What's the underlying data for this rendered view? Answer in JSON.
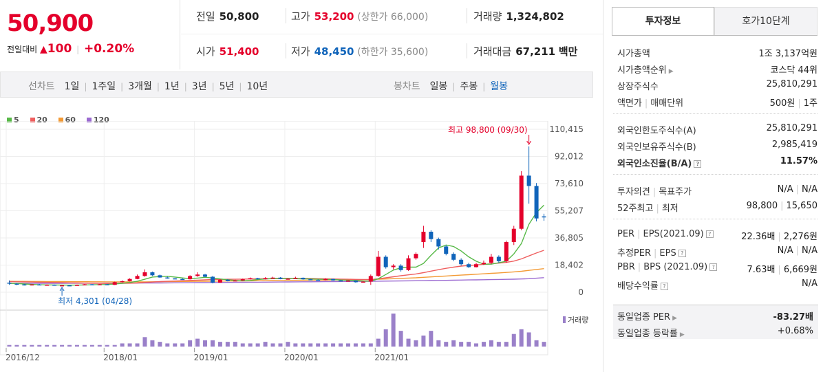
{
  "summary": {
    "price": "50,900",
    "change_label": "전일대비",
    "change_arrow": "▲",
    "change_value": "100",
    "change_pct": "+0.20%"
  },
  "quotes": {
    "prev_label": "전일",
    "prev_value": "50,800",
    "high_label": "고가",
    "high_value": "53,200",
    "high_sub": "(상한가 66,000)",
    "volume_label": "거래량",
    "volume_value": "1,324,802",
    "open_label": "시가",
    "open_value": "51,400",
    "low_label": "저가",
    "low_value": "48,450",
    "low_sub": "(하한가 35,600)",
    "amount_label": "거래대금",
    "amount_value": "67,211",
    "amount_unit": "백만"
  },
  "toolbar": {
    "line_label": "선차트",
    "ranges": [
      "1일",
      "1주일",
      "3개월",
      "1년",
      "3년",
      "5년",
      "10년"
    ],
    "candle_label": "봉차트",
    "candle_ranges": [
      "일봉",
      "주봉",
      "월봉"
    ],
    "selected_candle": "월봉"
  },
  "colors": {
    "up": "#e4002b",
    "down": "#1064ba",
    "ma5": "#57b947",
    "ma20": "#ef5f5f",
    "ma60": "#f39a34",
    "ma120": "#9b6ad1",
    "volume": "#9a80c9"
  },
  "chart_data": {
    "type": "candlestick",
    "period": "monthly",
    "legend": [
      "5",
      "20",
      "60",
      "120"
    ],
    "ylim": [
      0,
      110415
    ],
    "y_ticks": [
      "110,415",
      "92,012",
      "73,610",
      "55,207",
      "36,805",
      "18,402",
      "0"
    ],
    "x_ticks": [
      "2016/12",
      "2018/01",
      "2019/01",
      "2020/01",
      "2021/01"
    ],
    "max_annotation": "최고 98,800 (09/30)",
    "min_annotation": "최저 4,301 (04/28)",
    "volume_label": "거래량",
    "candles": [
      {
        "o": 6500,
        "c": 5800
      },
      {
        "o": 5800,
        "c": 5200
      },
      {
        "o": 5300,
        "c": 4800
      },
      {
        "o": 4800,
        "c": 5300
      },
      {
        "o": 5300,
        "c": 4900
      },
      {
        "o": 4900,
        "c": 5100
      },
      {
        "o": 5100,
        "c": 4600
      },
      {
        "o": 4600,
        "c": 4700
      },
      {
        "o": 4700,
        "c": 4500
      },
      {
        "o": 4500,
        "c": 5000
      },
      {
        "o": 5000,
        "c": 5400
      },
      {
        "o": 5400,
        "c": 5200
      },
      {
        "o": 5200,
        "c": 5400
      },
      {
        "o": 5400,
        "c": 5000
      },
      {
        "o": 5000,
        "c": 6800
      },
      {
        "o": 6800,
        "c": 7500
      },
      {
        "o": 7500,
        "c": 9000
      },
      {
        "o": 9000,
        "c": 11000
      },
      {
        "o": 11000,
        "c": 13500
      },
      {
        "o": 13500,
        "c": 11500
      },
      {
        "o": 11500,
        "c": 10000
      },
      {
        "o": 10000,
        "c": 9400
      },
      {
        "o": 9400,
        "c": 9000
      },
      {
        "o": 9000,
        "c": 8800
      },
      {
        "o": 8800,
        "c": 11000
      },
      {
        "o": 11000,
        "c": 12000
      },
      {
        "o": 12000,
        "c": 10500
      },
      {
        "o": 10500,
        "c": 6500
      },
      {
        "o": 6500,
        "c": 8500
      },
      {
        "o": 8500,
        "c": 7500
      },
      {
        "o": 7500,
        "c": 8000
      },
      {
        "o": 8000,
        "c": 8800
      },
      {
        "o": 8800,
        "c": 9500
      },
      {
        "o": 9500,
        "c": 8800
      },
      {
        "o": 8800,
        "c": 9600
      },
      {
        "o": 9600,
        "c": 9900
      },
      {
        "o": 9900,
        "c": 9000
      },
      {
        "o": 9000,
        "c": 9200
      },
      {
        "o": 9200,
        "c": 9800
      },
      {
        "o": 9800,
        "c": 8800
      },
      {
        "o": 8800,
        "c": 8400
      },
      {
        "o": 8400,
        "c": 8200
      },
      {
        "o": 8200,
        "c": 9000
      },
      {
        "o": 9000,
        "c": 8000
      },
      {
        "o": 8000,
        "c": 7700
      },
      {
        "o": 7700,
        "c": 7900
      },
      {
        "o": 7900,
        "c": 6800
      },
      {
        "o": 6800,
        "c": 7200
      },
      {
        "o": 7200,
        "c": 11000
      },
      {
        "o": 11000,
        "c": 24000
      },
      {
        "o": 24000,
        "c": 17000
      },
      {
        "o": 17000,
        "c": 18000
      },
      {
        "o": 18000,
        "c": 15000
      },
      {
        "o": 15000,
        "c": 23000
      },
      {
        "o": 23000,
        "c": 26000
      },
      {
        "o": 34000,
        "c": 41000
      },
      {
        "o": 41000,
        "c": 36000
      },
      {
        "o": 36000,
        "c": 31000
      },
      {
        "o": 31000,
        "c": 26000
      },
      {
        "o": 26000,
        "c": 22000
      },
      {
        "o": 22000,
        "c": 19000
      },
      {
        "o": 19000,
        "c": 17000
      },
      {
        "o": 17000,
        "c": 19000
      },
      {
        "o": 19000,
        "c": 20000
      },
      {
        "o": 20000,
        "c": 24000
      },
      {
        "o": 24000,
        "c": 21000
      },
      {
        "o": 21000,
        "c": 34000
      },
      {
        "o": 34000,
        "c": 43000
      },
      {
        "o": 43000,
        "c": 79000
      },
      {
        "o": 79000,
        "c": 72000
      },
      {
        "o": 72000,
        "c": 50000
      },
      {
        "o": 51400,
        "c": 50900
      }
    ],
    "candle_ranges_hl": [
      [
        8000,
        5000
      ],
      [
        6200,
        4800
      ],
      [
        5600,
        4600
      ],
      [
        5500,
        4600
      ],
      [
        5600,
        4700
      ],
      [
        5300,
        4800
      ],
      [
        5200,
        4400
      ],
      [
        4900,
        4301
      ],
      [
        4900,
        4400
      ],
      [
        5200,
        4400
      ],
      [
        5600,
        4900
      ],
      [
        5600,
        5000
      ],
      [
        5600,
        5100
      ],
      [
        5600,
        4900
      ],
      [
        7200,
        4900
      ],
      [
        8000,
        6600
      ],
      [
        9500,
        7300
      ],
      [
        12000,
        8800
      ],
      [
        15500,
        10500
      ],
      [
        14000,
        11000
      ],
      [
        12000,
        9800
      ],
      [
        10500,
        9200
      ],
      [
        9600,
        8800
      ],
      [
        9500,
        8500
      ],
      [
        11500,
        8600
      ],
      [
        13500,
        10500
      ],
      [
        12500,
        10300
      ],
      [
        11000,
        6000
      ],
      [
        9000,
        6300
      ],
      [
        8800,
        7300
      ],
      [
        8500,
        7400
      ],
      [
        9200,
        7800
      ],
      [
        10000,
        8600
      ],
      [
        9800,
        8600
      ],
      [
        10200,
        8600
      ],
      [
        10500,
        9400
      ],
      [
        10200,
        8800
      ],
      [
        9600,
        8700
      ],
      [
        10500,
        9000
      ],
      [
        10000,
        8500
      ],
      [
        9000,
        8200
      ],
      [
        8800,
        8000
      ],
      [
        9500,
        8000
      ],
      [
        9200,
        7800
      ],
      [
        8200,
        7500
      ],
      [
        8200,
        7500
      ],
      [
        8100,
        6500
      ],
      [
        7500,
        6600
      ],
      [
        12000,
        5000
      ],
      [
        28000,
        10500
      ],
      [
        25000,
        16000
      ],
      [
        19000,
        15500
      ],
      [
        19000,
        14000
      ],
      [
        25000,
        14500
      ],
      [
        27000,
        22000
      ],
      [
        45000,
        30000
      ],
      [
        42000,
        34000
      ],
      [
        37000,
        29000
      ],
      [
        32000,
        25000
      ],
      [
        27000,
        21000
      ],
      [
        23000,
        18000
      ],
      [
        20000,
        16500
      ],
      [
        20000,
        16800
      ],
      [
        21500,
        18500
      ],
      [
        26000,
        19000
      ],
      [
        25000,
        20000
      ],
      [
        35000,
        20000
      ],
      [
        45000,
        32000
      ],
      [
        82000,
        42000
      ],
      [
        98800,
        60000
      ],
      [
        74000,
        48000
      ],
      [
        53200,
        48450
      ]
    ],
    "volume": [
      1,
      1,
      1,
      1,
      1,
      1,
      1,
      1,
      1,
      1,
      1,
      1,
      1,
      1,
      1,
      2,
      2,
      2,
      6,
      4,
      3,
      2,
      2,
      2,
      4,
      5,
      4,
      4,
      3,
      3,
      3,
      2,
      2,
      2,
      3,
      2,
      2,
      3,
      2,
      2,
      2,
      2,
      2,
      2,
      2,
      2,
      2,
      2,
      2,
      5,
      11,
      21,
      10,
      5,
      4,
      7,
      10,
      4,
      3,
      4,
      3,
      3,
      2,
      3,
      4,
      3,
      3,
      8,
      11,
      9,
      4,
      3
    ],
    "ma_lines": {
      "ma5": [
        6000,
        5900,
        5600,
        5300,
        5100,
        5000,
        4950,
        4850,
        4800,
        4850,
        4950,
        5050,
        5200,
        5250,
        5600,
        6000,
        6600,
        7400,
        8800,
        10300,
        10600,
        10800,
        10300,
        9700,
        9200,
        9600,
        10100,
        9700,
        9000,
        8500,
        8000,
        7800,
        8000,
        8600,
        9000,
        9300,
        9400,
        9300,
        9200,
        9100,
        9000,
        8800,
        8700,
        8600,
        8300,
        8100,
        7900,
        7600,
        7500,
        9200,
        12000,
        15000,
        16600,
        17000,
        17000,
        19500,
        25000,
        30000,
        32000,
        31000,
        28000,
        24000,
        21000,
        19000,
        19000,
        20000,
        21000,
        26000,
        33000,
        46000,
        54000,
        59000
      ],
      "ma20": [
        7200,
        7100,
        7000,
        6900,
        6800,
        6700,
        6600,
        6500,
        6400,
        6300,
        6200,
        6100,
        6000,
        5900,
        5900,
        6000,
        6100,
        6300,
        6600,
        6900,
        7200,
        7400,
        7600,
        7800,
        8000,
        8200,
        8400,
        8600,
        8700,
        8800,
        8800,
        8900,
        9000,
        9100,
        9100,
        9200,
        9200,
        9300,
        9300,
        9300,
        9300,
        9200,
        9100,
        9000,
        8900,
        8800,
        8700,
        8600,
        8600,
        9100,
        9800,
        10500,
        11200,
        11800,
        12400,
        13300,
        14300,
        15300,
        16200,
        17000,
        17700,
        18100,
        18500,
        18900,
        19300,
        19700,
        20200,
        21100,
        22600,
        24600,
        26600,
        28400
      ],
      "ma60": [
        7400,
        7380,
        7350,
        7320,
        7300,
        7270,
        7240,
        7210,
        7180,
        7150,
        7120,
        7090,
        7060,
        7040,
        7020,
        7010,
        7010,
        7020,
        7050,
        7100,
        7150,
        7200,
        7250,
        7300,
        7350,
        7400,
        7450,
        7500,
        7550,
        7600,
        7650,
        7700,
        7750,
        7800,
        7850,
        7900,
        7950,
        8000,
        8050,
        8100,
        8150,
        8200,
        8250,
        8300,
        8350,
        8400,
        8450,
        8500,
        8600,
        8800,
        9000,
        9200,
        9400,
        9600,
        9800,
        10100,
        10400,
        10700,
        11000,
        11300,
        11600,
        11900,
        12200,
        12500,
        12800,
        13100,
        13400,
        13800,
        14200,
        14800,
        15400,
        16000
      ],
      "ma120": [
        6000,
        6010,
        6020,
        6030,
        6040,
        6050,
        6060,
        6070,
        6080,
        6090,
        6100,
        6110,
        6120,
        6130,
        6140,
        6160,
        6180,
        6200,
        6230,
        6260,
        6300,
        6340,
        6380,
        6420,
        6460,
        6500,
        6540,
        6580,
        6620,
        6660,
        6700,
        6740,
        6780,
        6820,
        6860,
        6900,
        6940,
        6980,
        7020,
        7060,
        7100,
        7140,
        7180,
        7220,
        7260,
        7300,
        7340,
        7380,
        7420,
        7480,
        7540,
        7600,
        7660,
        7720,
        7780,
        7850,
        7920,
        8000,
        8080,
        8160,
        8240,
        8320,
        8400,
        8480,
        8560,
        8650,
        8740,
        8840,
        9000,
        9200,
        9500,
        9900
      ]
    }
  },
  "info": {
    "tab_active": "투자정보",
    "tab_other": "호가10단계",
    "market_cap_label": "시가총액",
    "market_cap_value": "1조 3,137억원",
    "rank_label": "시가총액순위",
    "rank_value": "코스닥 44위",
    "shares_label": "상장주식수",
    "shares_value": "25,810,291",
    "face_label": "액면가",
    "unit_label": "매매단위",
    "face_value": "500원",
    "unit_value": "1주",
    "foreign_limit_label": "외국인한도주식수(A)",
    "foreign_limit_value": "25,810,291",
    "foreign_hold_label": "외국인보유주식수(B)",
    "foreign_hold_value": "2,985,419",
    "foreign_ratio_label": "외국인소진율(B/A)",
    "foreign_ratio_value": "11.57%",
    "opinion_label": "투자의견",
    "target_label": "목표주가",
    "opinion_value": "N/A",
    "target_value": "N/A",
    "w52_label": "52주최고",
    "w52_low_label": "최저",
    "w52_high": "98,800",
    "w52_low": "15,650",
    "per_label": "PER",
    "eps_label": "EPS(2021.09)",
    "per_value": "22.36배",
    "eps_value": "2,276원",
    "est_per_label": "추정PER",
    "est_eps_label": "EPS",
    "est_per_value": "N/A",
    "est_eps_value": "N/A",
    "pbr_label": "PBR",
    "bps_label": "BPS (2021.09)",
    "pbr_value": "7.63배",
    "bps_value": "6,669원",
    "div_label": "배당수익률",
    "div_value": "N/A",
    "sector_per_label": "동일업종 PER",
    "sector_per_value": "-83.27배",
    "sector_rate_label": "동일업종 등락률",
    "sector_rate_value": "+0.68%"
  }
}
